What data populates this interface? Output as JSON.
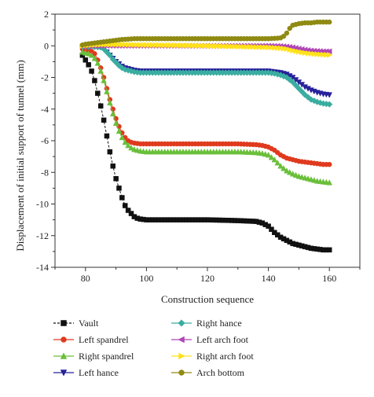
{
  "chart_data": {
    "type": "line",
    "xlabel": "Construction sequence",
    "ylabel": "Displacement of initial support of tunnel (mm)",
    "xlim": [
      70,
      170
    ],
    "ylim": [
      -14,
      2
    ],
    "xticks": [
      80,
      100,
      120,
      140,
      160
    ],
    "yticks": [
      2,
      0,
      -2,
      -4,
      -6,
      -8,
      -10,
      -12,
      -14
    ],
    "x_tick_labels": [
      "80",
      "100",
      "120",
      "140",
      "160"
    ],
    "y_tick_labels": [
      "2",
      "0",
      "-2",
      "-4",
      "-6",
      "-8",
      "-10",
      "-12",
      "-14"
    ],
    "grid": false,
    "legend_position": "bottom",
    "series": [
      {
        "name": "Vault",
        "color": "#111111",
        "marker": "square",
        "dash": true,
        "points": [
          [
            79,
            -0.6
          ],
          [
            80,
            -0.9
          ],
          [
            81,
            -1.2
          ],
          [
            82,
            -1.6
          ],
          [
            83,
            -2.2
          ],
          [
            84,
            -3.0
          ],
          [
            85,
            -3.8
          ],
          [
            86,
            -4.7
          ],
          [
            87,
            -5.7
          ],
          [
            88,
            -6.7
          ],
          [
            89,
            -7.6
          ],
          [
            90,
            -8.4
          ],
          [
            91,
            -9.0
          ],
          [
            92,
            -9.6
          ],
          [
            93,
            -10.1
          ],
          [
            94,
            -10.4
          ],
          [
            95,
            -10.6
          ],
          [
            96,
            -10.8
          ],
          [
            97,
            -10.9
          ],
          [
            98,
            -10.95
          ],
          [
            100,
            -11.0
          ],
          [
            110,
            -11.0
          ],
          [
            120,
            -11.0
          ],
          [
            130,
            -11.05
          ],
          [
            136,
            -11.1
          ],
          [
            138,
            -11.2
          ],
          [
            140,
            -11.4
          ],
          [
            142,
            -11.8
          ],
          [
            144,
            -12.1
          ],
          [
            146,
            -12.3
          ],
          [
            148,
            -12.5
          ],
          [
            150,
            -12.6
          ],
          [
            152,
            -12.7
          ],
          [
            154,
            -12.8
          ],
          [
            156,
            -12.85
          ],
          [
            158,
            -12.9
          ],
          [
            160,
            -12.9
          ]
        ]
      },
      {
        "name": "Left spandrel",
        "color": "#e03a1e",
        "marker": "circle",
        "dash": false,
        "points": [
          [
            79,
            -0.2
          ],
          [
            80,
            -0.25
          ],
          [
            81,
            -0.3
          ],
          [
            82,
            -0.35
          ],
          [
            83,
            -0.5
          ],
          [
            84,
            -0.9
          ],
          [
            85,
            -1.4
          ],
          [
            86,
            -2.0
          ],
          [
            87,
            -2.7
          ],
          [
            88,
            -3.4
          ],
          [
            89,
            -4.0
          ],
          [
            90,
            -4.6
          ],
          [
            91,
            -5.1
          ],
          [
            92,
            -5.5
          ],
          [
            93,
            -5.8
          ],
          [
            94,
            -6.0
          ],
          [
            95,
            -6.1
          ],
          [
            96,
            -6.15
          ],
          [
            98,
            -6.2
          ],
          [
            100,
            -6.2
          ],
          [
            110,
            -6.2
          ],
          [
            120,
            -6.2
          ],
          [
            130,
            -6.2
          ],
          [
            136,
            -6.25
          ],
          [
            138,
            -6.3
          ],
          [
            140,
            -6.4
          ],
          [
            142,
            -6.6
          ],
          [
            144,
            -6.9
          ],
          [
            146,
            -7.1
          ],
          [
            148,
            -7.2
          ],
          [
            150,
            -7.3
          ],
          [
            152,
            -7.35
          ],
          [
            154,
            -7.4
          ],
          [
            156,
            -7.45
          ],
          [
            158,
            -7.5
          ],
          [
            160,
            -7.5
          ]
        ]
      },
      {
        "name": "Right spandrel",
        "color": "#6abf3a",
        "marker": "triangle-up",
        "dash": false,
        "points": [
          [
            79,
            -0.4
          ],
          [
            80,
            -0.45
          ],
          [
            81,
            -0.5
          ],
          [
            82,
            -0.6
          ],
          [
            83,
            -0.8
          ],
          [
            84,
            -1.1
          ],
          [
            85,
            -1.6
          ],
          [
            86,
            -2.2
          ],
          [
            87,
            -2.9
          ],
          [
            88,
            -3.6
          ],
          [
            89,
            -4.3
          ],
          [
            90,
            -4.9
          ],
          [
            91,
            -5.4
          ],
          [
            92,
            -5.8
          ],
          [
            93,
            -6.1
          ],
          [
            94,
            -6.3
          ],
          [
            95,
            -6.45
          ],
          [
            96,
            -6.55
          ],
          [
            98,
            -6.65
          ],
          [
            100,
            -6.7
          ],
          [
            110,
            -6.7
          ],
          [
            120,
            -6.7
          ],
          [
            130,
            -6.7
          ],
          [
            136,
            -6.75
          ],
          [
            138,
            -6.8
          ],
          [
            140,
            -6.9
          ],
          [
            142,
            -7.2
          ],
          [
            144,
            -7.6
          ],
          [
            146,
            -7.9
          ],
          [
            148,
            -8.1
          ],
          [
            150,
            -8.25
          ],
          [
            152,
            -8.35
          ],
          [
            154,
            -8.45
          ],
          [
            156,
            -8.55
          ],
          [
            158,
            -8.6
          ],
          [
            160,
            -8.65
          ]
        ]
      },
      {
        "name": "Left hance",
        "color": "#27219a",
        "marker": "triangle-down",
        "dash": false,
        "points": [
          [
            79,
            -0.05
          ],
          [
            82,
            -0.05
          ],
          [
            85,
            -0.1
          ],
          [
            86,
            -0.2
          ],
          [
            87,
            -0.4
          ],
          [
            88,
            -0.6
          ],
          [
            89,
            -0.8
          ],
          [
            90,
            -1.0
          ],
          [
            91,
            -1.15
          ],
          [
            92,
            -1.3
          ],
          [
            93,
            -1.4
          ],
          [
            94,
            -1.45
          ],
          [
            95,
            -1.5
          ],
          [
            96,
            -1.55
          ],
          [
            98,
            -1.6
          ],
          [
            100,
            -1.6
          ],
          [
            110,
            -1.6
          ],
          [
            120,
            -1.6
          ],
          [
            130,
            -1.6
          ],
          [
            140,
            -1.6
          ],
          [
            142,
            -1.65
          ],
          [
            144,
            -1.7
          ],
          [
            146,
            -1.8
          ],
          [
            148,
            -2.0
          ],
          [
            150,
            -2.3
          ],
          [
            152,
            -2.6
          ],
          [
            154,
            -2.8
          ],
          [
            156,
            -2.95
          ],
          [
            158,
            -3.05
          ],
          [
            160,
            -3.1
          ]
        ]
      },
      {
        "name": "Right hance",
        "color": "#3aada0",
        "marker": "diamond",
        "dash": false,
        "points": [
          [
            79,
            -0.05
          ],
          [
            82,
            -0.05
          ],
          [
            85,
            -0.1
          ],
          [
            86,
            -0.2
          ],
          [
            87,
            -0.4
          ],
          [
            88,
            -0.6
          ],
          [
            89,
            -0.85
          ],
          [
            90,
            -1.05
          ],
          [
            91,
            -1.25
          ],
          [
            92,
            -1.4
          ],
          [
            93,
            -1.5
          ],
          [
            94,
            -1.55
          ],
          [
            95,
            -1.6
          ],
          [
            96,
            -1.65
          ],
          [
            98,
            -1.7
          ],
          [
            100,
            -1.7
          ],
          [
            110,
            -1.7
          ],
          [
            120,
            -1.7
          ],
          [
            130,
            -1.7
          ],
          [
            140,
            -1.7
          ],
          [
            142,
            -1.75
          ],
          [
            144,
            -1.85
          ],
          [
            146,
            -2.0
          ],
          [
            148,
            -2.3
          ],
          [
            150,
            -2.7
          ],
          [
            152,
            -3.1
          ],
          [
            154,
            -3.4
          ],
          [
            156,
            -3.55
          ],
          [
            158,
            -3.65
          ],
          [
            160,
            -3.7
          ]
        ]
      },
      {
        "name": "Left arch foot",
        "color": "#b045b5",
        "marker": "triangle-left",
        "dash": false,
        "points": [
          [
            79,
            -0.02
          ],
          [
            85,
            0.0
          ],
          [
            90,
            0.0
          ],
          [
            100,
            0.0
          ],
          [
            110,
            0.0
          ],
          [
            120,
            0.0
          ],
          [
            130,
            0.0
          ],
          [
            140,
            0.0
          ],
          [
            144,
            -0.02
          ],
          [
            146,
            -0.05
          ],
          [
            148,
            -0.1
          ],
          [
            150,
            -0.18
          ],
          [
            152,
            -0.25
          ],
          [
            154,
            -0.3
          ],
          [
            156,
            -0.33
          ],
          [
            158,
            -0.35
          ],
          [
            160,
            -0.35
          ]
        ]
      },
      {
        "name": "Right arch foot",
        "color": "#ffe21a",
        "marker": "triangle-right",
        "dash": false,
        "points": [
          [
            79,
            0.0
          ],
          [
            82,
            0.05
          ],
          [
            85,
            0.08
          ],
          [
            90,
            0.08
          ],
          [
            100,
            0.05
          ],
          [
            110,
            0.03
          ],
          [
            120,
            0.0
          ],
          [
            130,
            -0.05
          ],
          [
            140,
            -0.1
          ],
          [
            144,
            -0.15
          ],
          [
            146,
            -0.2
          ],
          [
            148,
            -0.3
          ],
          [
            150,
            -0.38
          ],
          [
            152,
            -0.45
          ],
          [
            154,
            -0.5
          ],
          [
            156,
            -0.53
          ],
          [
            158,
            -0.56
          ],
          [
            160,
            -0.58
          ]
        ]
      },
      {
        "name": "Arch bottom",
        "color": "#8f8a12",
        "marker": "circle",
        "dash": false,
        "points": [
          [
            79,
            0.05
          ],
          [
            80,
            0.1
          ],
          [
            82,
            0.15
          ],
          [
            84,
            0.2
          ],
          [
            86,
            0.25
          ],
          [
            88,
            0.3
          ],
          [
            90,
            0.35
          ],
          [
            92,
            0.4
          ],
          [
            94,
            0.42
          ],
          [
            96,
            0.45
          ],
          [
            100,
            0.45
          ],
          [
            110,
            0.45
          ],
          [
            120,
            0.45
          ],
          [
            130,
            0.45
          ],
          [
            140,
            0.45
          ],
          [
            143,
            0.48
          ],
          [
            144,
            0.5
          ],
          [
            145,
            0.6
          ],
          [
            146,
            0.8
          ],
          [
            147,
            1.1
          ],
          [
            148,
            1.3
          ],
          [
            150,
            1.4
          ],
          [
            152,
            1.45
          ],
          [
            154,
            1.45
          ],
          [
            156,
            1.5
          ],
          [
            158,
            1.5
          ],
          [
            160,
            1.5
          ]
        ]
      }
    ]
  }
}
